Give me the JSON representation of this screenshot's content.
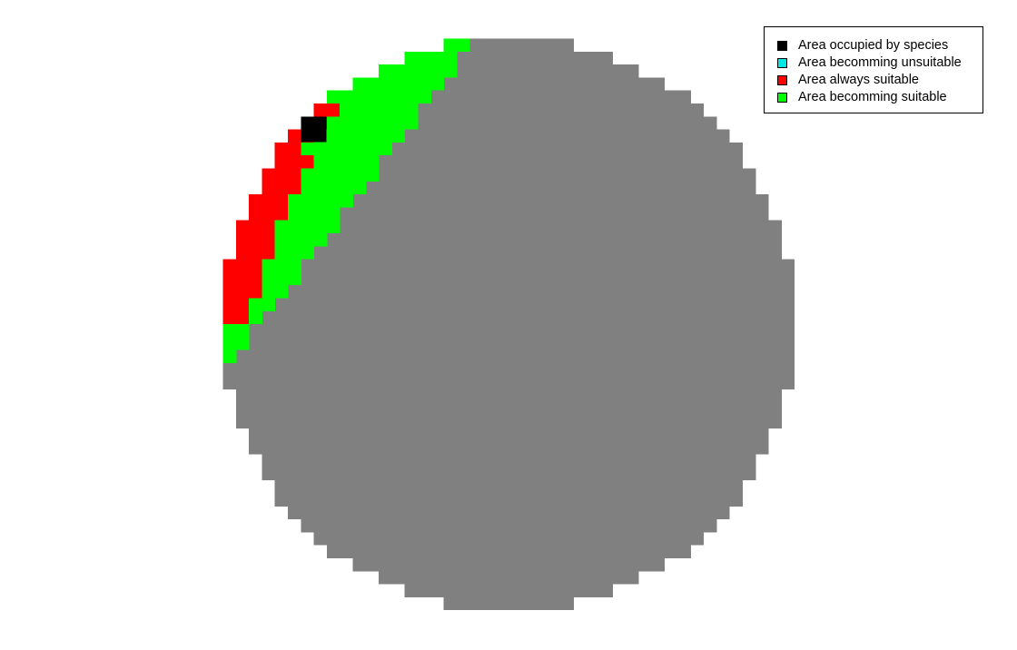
{
  "map": {
    "colors": {
      "background_region": "#808080",
      "occupied": "#000000",
      "unsuitable": "#00e5e5",
      "always_suitable": "#ff0000",
      "becoming_suitable": "#00ff00"
    }
  },
  "legend": {
    "items": [
      {
        "key": "occupied",
        "label": "Area occupied by species",
        "color": "#000000"
      },
      {
        "key": "unsuitable",
        "label": "Area becomming unsuitable",
        "color": "#00e5e5"
      },
      {
        "key": "always_suitable",
        "label": "Area always suitable",
        "color": "#ff0000"
      },
      {
        "key": "becoming_suitable",
        "label": "Area becomming suitable",
        "color": "#00ff00"
      }
    ]
  }
}
